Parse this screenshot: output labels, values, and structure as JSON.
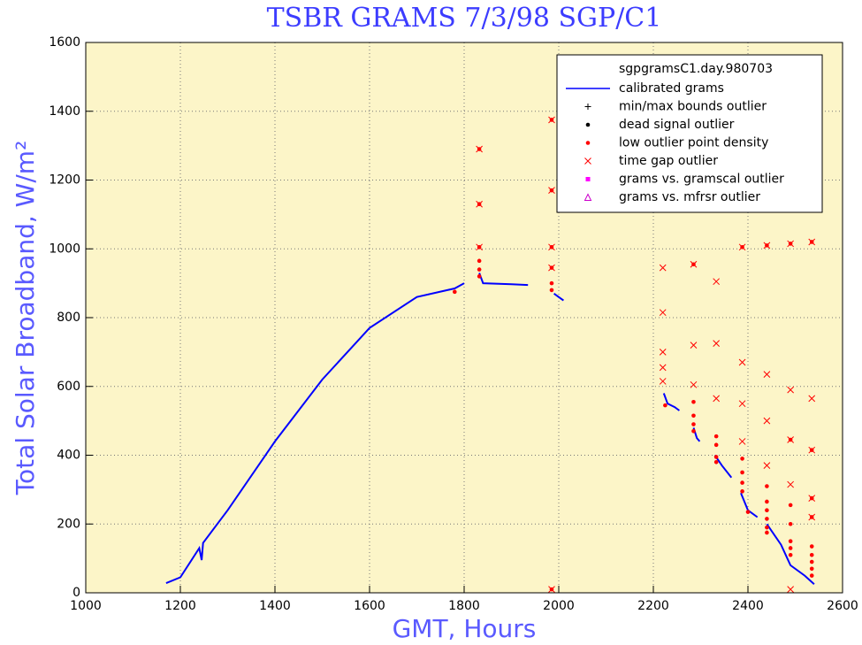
{
  "chart_data": {
    "type": "line",
    "title": "TSBR GRAMS 7/3/98 SGP/C1",
    "x_label": "GMT, Hours",
    "y_label": "Total Solar Broadband, W/m²",
    "legend_title": "sgpgramsC1.day.980703",
    "legend": "upper right",
    "grid": true,
    "xlim": [
      1000,
      2600
    ],
    "xticks": [
      1000,
      1200,
      1400,
      1600,
      1800,
      2000,
      2200,
      2400,
      2600
    ],
    "ylim": [
      0,
      1600
    ],
    "yticks": [
      0,
      200,
      400,
      600,
      800,
      1000,
      1200,
      1400,
      1600
    ],
    "series": [
      {
        "name": "calibrated grams",
        "color": "#0000ff",
        "marker": "line",
        "x": [
          1170,
          1200,
          1240,
          1245,
          1248,
          1300,
          1400,
          1500,
          1600,
          1700,
          1780,
          1800,
          null,
          1832,
          1840,
          1900,
          1935,
          null,
          1990,
          2010,
          null,
          2222,
          2230,
          2245,
          2255,
          null,
          2285,
          2292,
          2298,
          null,
          2330,
          2345,
          2365,
          null,
          2385,
          2400,
          2420,
          null,
          2440,
          2470,
          2490,
          2520,
          2540
        ],
        "values": [
          28,
          45,
          130,
          95,
          145,
          240,
          440,
          620,
          770,
          860,
          885,
          900,
          null,
          930,
          900,
          897,
          895,
          null,
          870,
          850,
          null,
          580,
          550,
          540,
          530,
          null,
          480,
          450,
          440,
          null,
          400,
          370,
          335,
          null,
          290,
          240,
          220,
          null,
          200,
          140,
          80,
          50,
          25
        ]
      },
      {
        "name": "min/max bounds outlier",
        "color": "#000000",
        "marker": "plus",
        "x": [],
        "values": []
      },
      {
        "name": "dead signal outlier",
        "color": "#000000",
        "marker": "dot",
        "x": [],
        "values": []
      },
      {
        "name": "low outlier point density",
        "color": "#ff0000",
        "marker": "dot",
        "x": [
          1780,
          1832,
          1832,
          1832,
          1832,
          1832,
          1832,
          1985,
          1985,
          1985,
          1985,
          1985,
          1985,
          1985,
          2225,
          2285,
          2285,
          2285,
          2285,
          2285,
          2333,
          2333,
          2333,
          2333,
          2388,
          2388,
          2388,
          2388,
          2388,
          2400,
          2440,
          2440,
          2440,
          2440,
          2440,
          2440,
          2440,
          2490,
          2490,
          2490,
          2490,
          2490,
          2490,
          2490,
          2535,
          2535,
          2535,
          2535,
          2535,
          2535,
          2535,
          2535,
          2535
        ],
        "values": [
          875,
          1290,
          1130,
          1005,
          965,
          940,
          920,
          1375,
          1170,
          1005,
          945,
          900,
          880,
          10,
          545,
          955,
          555,
          515,
          490,
          470,
          455,
          430,
          395,
          380,
          1005,
          390,
          350,
          320,
          295,
          235,
          1010,
          310,
          265,
          240,
          215,
          190,
          175,
          1015,
          445,
          255,
          200,
          150,
          130,
          110,
          1020,
          415,
          275,
          220,
          135,
          110,
          90,
          70,
          50
        ]
      },
      {
        "name": "time gap outlier",
        "color": "#ff0000",
        "marker": "x",
        "x": [
          1832,
          1832,
          1832,
          1985,
          1985,
          1985,
          1985,
          1985,
          2220,
          2220,
          2220,
          2220,
          2220,
          2285,
          2285,
          2285,
          2333,
          2333,
          2333,
          2388,
          2388,
          2388,
          2388,
          2440,
          2440,
          2440,
          2440,
          2490,
          2490,
          2490,
          2490,
          2490,
          2535,
          2535,
          2535,
          2535,
          2535
        ],
        "values": [
          1290,
          1130,
          1005,
          1375,
          1170,
          1005,
          945,
          10,
          945,
          815,
          700,
          655,
          615,
          955,
          720,
          605,
          905,
          725,
          565,
          1005,
          670,
          550,
          440,
          1010,
          635,
          500,
          370,
          1015,
          590,
          445,
          315,
          10,
          1020,
          565,
          415,
          275,
          220
        ]
      },
      {
        "name": "grams vs. gramscal outlier",
        "color": "#ff00ff",
        "marker": "square",
        "x": [],
        "values": []
      },
      {
        "name": "grams vs. mfrsr outlier",
        "color": "#cc00cc",
        "marker": "triangle",
        "x": [],
        "values": []
      }
    ]
  }
}
